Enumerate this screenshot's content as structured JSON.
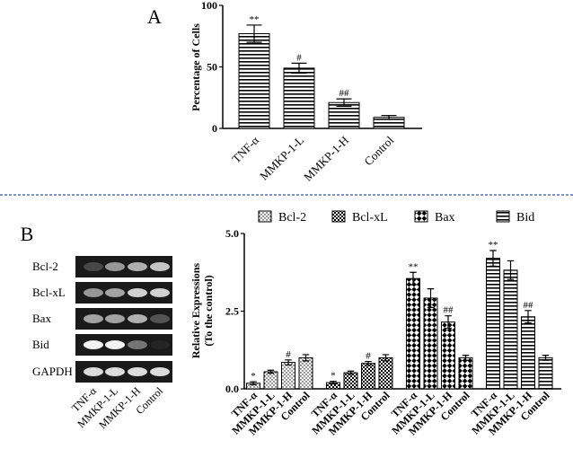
{
  "chart_data": [
    {
      "type": "bar",
      "panel": "A",
      "ylabel": "Percentage  of  Cells",
      "categories": [
        "TNF-α",
        "MMKP-1-L",
        "MMKP-1-H",
        "Control"
      ],
      "values": [
        77,
        49,
        21,
        9
      ],
      "errors": [
        7,
        4,
        3,
        1.5
      ],
      "annotations": [
        "**",
        "#",
        "##",
        null
      ],
      "pattern": "hlines",
      "ylim": [
        0,
        100
      ],
      "yticks": [
        0,
        50,
        100
      ]
    },
    {
      "type": "grouped_bar",
      "panel": "B",
      "ylabel": [
        "Relative Expressions",
        "(To the control)"
      ],
      "categories": [
        "TNF-α",
        "MMKP-1-L",
        "MMKP-1-H",
        "Control"
      ],
      "series": [
        {
          "name": "Bcl-2",
          "pattern": "dots",
          "values": [
            0.18,
            0.55,
            0.85,
            1.0
          ],
          "errors": [
            0.05,
            0.05,
            0.08,
            0.1
          ],
          "annotations": [
            "*",
            null,
            "#",
            null
          ]
        },
        {
          "name": "Bcl-xL",
          "pattern": "checker-small",
          "values": [
            0.2,
            0.52,
            0.82,
            1.0
          ],
          "errors": [
            0.04,
            0.05,
            0.06,
            0.1
          ],
          "annotations": [
            "*",
            null,
            "#",
            null
          ]
        },
        {
          "name": "Bax",
          "pattern": "checker-large",
          "values": [
            3.55,
            2.92,
            2.15,
            1.0
          ],
          "errors": [
            0.2,
            0.3,
            0.2,
            0.08
          ],
          "annotations": [
            "**",
            null,
            "##",
            null
          ]
        },
        {
          "name": "Bid",
          "pattern": "hlines",
          "values": [
            4.2,
            3.82,
            2.32,
            1.0
          ],
          "errors": [
            0.25,
            0.3,
            0.2,
            0.08
          ],
          "annotations": [
            "**",
            null,
            "##",
            null
          ]
        }
      ],
      "ylim": [
        0,
        5
      ],
      "yticks": [
        {
          "value": 0,
          "label": "0.0"
        },
        {
          "value": 2.5,
          "label": "2.5"
        },
        {
          "value": 5,
          "label": "5.0"
        }
      ],
      "legend": "top"
    }
  ],
  "gel": {
    "rows": [
      "Bcl-2",
      "Bcl-xL",
      "Bax",
      "Bid",
      "GAPDH"
    ],
    "columns": [
      "TNF-α",
      "MMKP-1-L",
      "MMKP-1-H",
      "Control"
    ]
  }
}
